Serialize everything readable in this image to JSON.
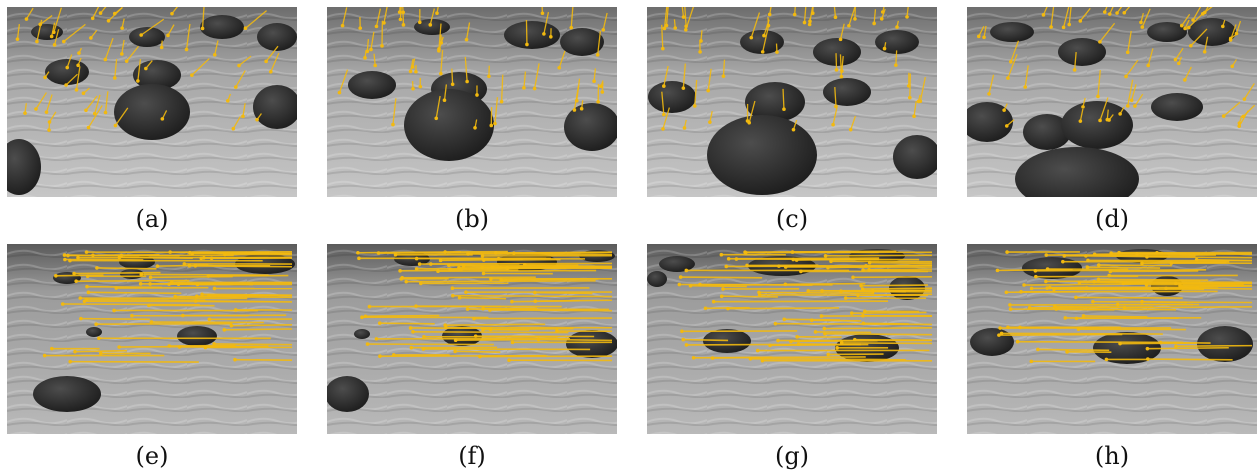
{
  "panels": [
    {
      "label": "(a)"
    },
    {
      "label": "(b)"
    },
    {
      "label": "(c)"
    },
    {
      "label": "(d)"
    },
    {
      "label": "(e)"
    },
    {
      "label": "(f)"
    },
    {
      "label": "(g)"
    },
    {
      "label": "(h)"
    }
  ],
  "colors": {
    "track": "#f2b90f",
    "sand_light": "#c9c9c9",
    "sand_dark": "#8a8a8a",
    "rock": "#262626",
    "shadow": "#4a4a4a"
  }
}
